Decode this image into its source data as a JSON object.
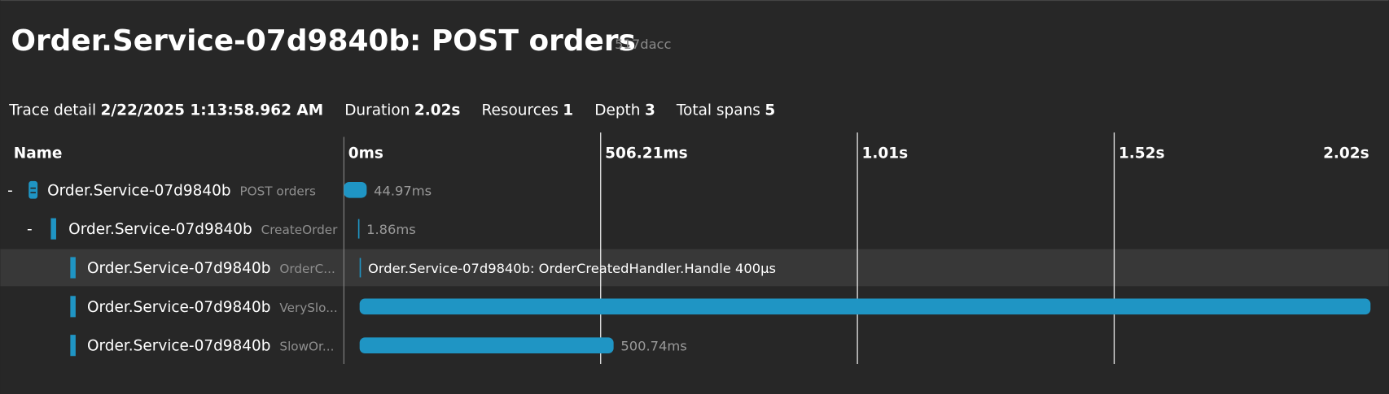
{
  "header": {
    "title": "Order.Service-07d9840b: POST orders",
    "trace_id": "517dacc"
  },
  "summary": [
    {
      "label": "Trace detail",
      "value": "2/22/2025 1:13:58.962 AM"
    },
    {
      "label": "Duration",
      "value": "2.02s"
    },
    {
      "label": "Resources",
      "value": 1
    },
    {
      "label": "Depth",
      "value": 3
    },
    {
      "label": "Total spans",
      "value": 5
    }
  ],
  "timeline": {
    "name_header": "Name",
    "xlim": [
      0,
      2024.84
    ],
    "xticks": [
      {
        "value": 0,
        "label": "0ms"
      },
      {
        "value": 506.21,
        "label": "506.21ms"
      },
      {
        "value": 1012.42,
        "label": "1.01s"
      },
      {
        "value": 1518.63,
        "label": "1.52s"
      },
      {
        "value": 2024.84,
        "label": "2.02s"
      }
    ]
  },
  "spans": [
    {
      "resource": "Order.Service-07d9840b",
      "operation": "POST orders",
      "start": 0,
      "duration": 44.97,
      "duration_label": "44.97ms"
    },
    {
      "resource": "Order.Service-07d9840b",
      "operation": "CreateOrder",
      "start": 28,
      "duration": 1.86,
      "duration_label": "1.86ms"
    },
    {
      "resource": "Order.Service-07d9840b",
      "operation": "OrderC...",
      "start": 31,
      "duration": 0.4,
      "duration_label": "Order.Service-07d9840b: OrderCreatedHandler.Handle 400µs"
    },
    {
      "resource": "Order.Service-07d9840b",
      "operation": "VerySlo...",
      "start": 31,
      "duration": 1993
    },
    {
      "resource": "Order.Service-07d9840b",
      "operation": "SlowOr...",
      "start": 31,
      "duration": 500.74,
      "duration_label": "500.74ms"
    }
  ]
}
